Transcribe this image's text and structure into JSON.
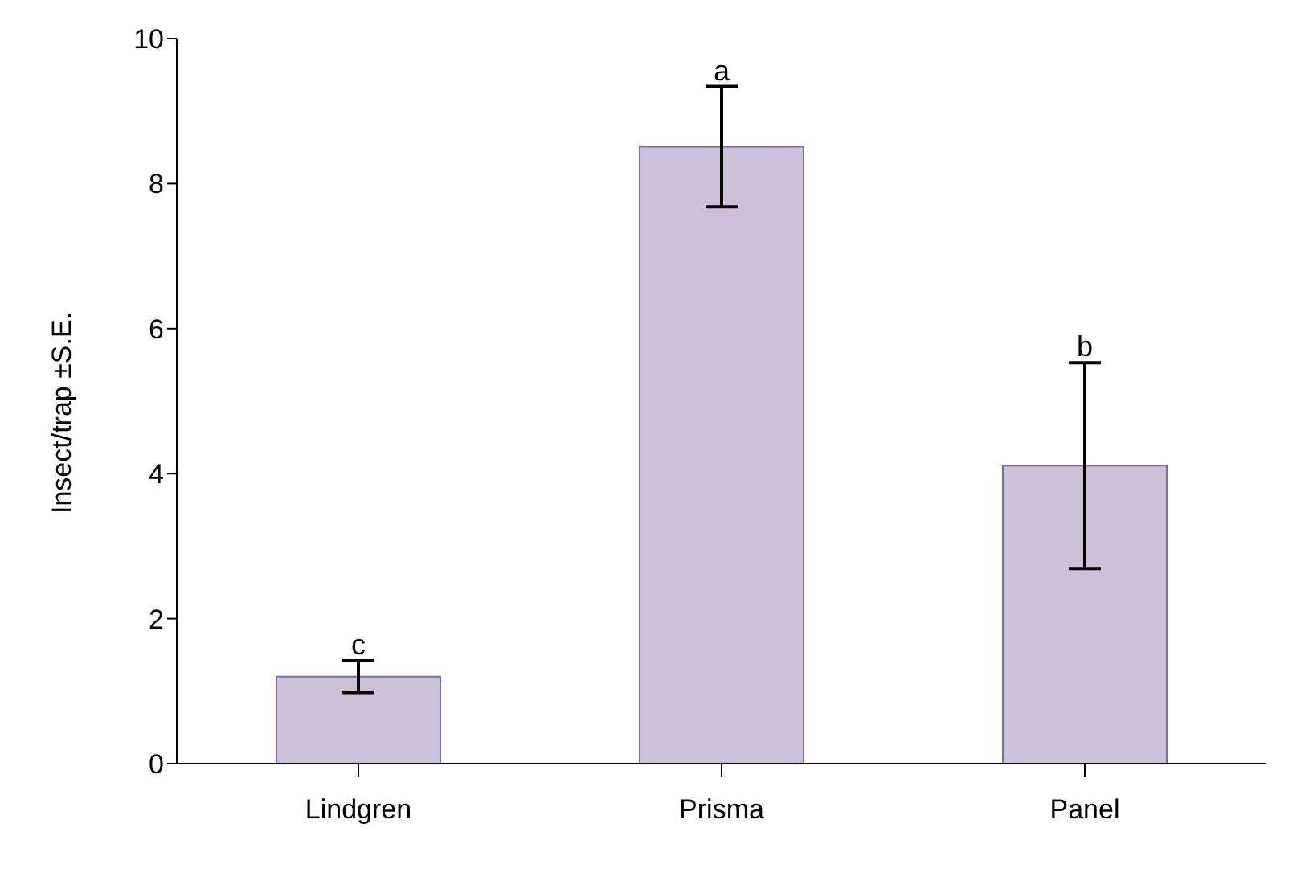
{
  "chart_data": {
    "type": "bar",
    "ylabel": "Insect/trap ±S.E.",
    "categories": [
      "Lindgren",
      "Prisma",
      "Panel"
    ],
    "values": [
      1.2,
      8.51,
      4.11
    ],
    "errors": [
      0.22,
      0.83,
      1.42
    ],
    "color": "#ccc0da",
    "ylim": [
      0,
      10
    ],
    "yticks": [
      0,
      2,
      4,
      6,
      8,
      10
    ],
    "grid": false,
    "legend": false,
    "annotations": [
      {
        "text": "c",
        "x": "Lindgren",
        "y": 1.42
      },
      {
        "text": "a",
        "x": "Prisma",
        "y": 9.34
      },
      {
        "text": "b",
        "x": "Panel",
        "y": 5.53
      }
    ]
  }
}
